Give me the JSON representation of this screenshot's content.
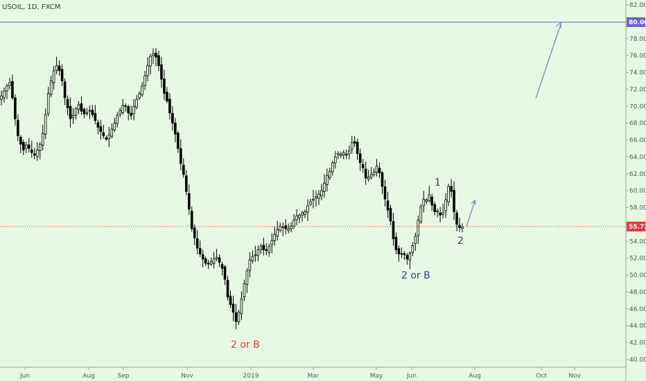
{
  "chart_data": {
    "type": "line",
    "title": "USOIL, 1D, FXCM",
    "x_axis_labels": [
      "Jun",
      "Aug",
      "Sep",
      "Nov",
      "2019",
      "Mar",
      "May",
      "Jun",
      "Aug",
      "Oct",
      "Nov"
    ],
    "y_axis_ticks": [
      "82.00",
      "80.00",
      "78.00",
      "76.00",
      "74.00",
      "72.00",
      "70.00",
      "68.00",
      "66.00",
      "64.00",
      "62.00",
      "60.00",
      "58.00",
      "56.00",
      "54.00",
      "52.00",
      "50.00",
      "48.00",
      "46.00",
      "44.00",
      "42.00",
      "40.00"
    ],
    "ylim": [
      39.5,
      82.6
    ],
    "grid": false,
    "series": [
      {
        "values": [
          71.2,
          71.8,
          72.4,
          72.8,
          71.0,
          68.5,
          66.5,
          65.5,
          64.8,
          65.4,
          65.0,
          64.5,
          64.2,
          64.8,
          65.5,
          66.8,
          69.0,
          71.5,
          73.0,
          74.2,
          74.8,
          74.2,
          73.0,
          71.0,
          69.8,
          68.5,
          68.9,
          69.7,
          70.2,
          69.4,
          69.1,
          69.2,
          69.5,
          69.0,
          68.3,
          67.5,
          67.0,
          66.5,
          66.1,
          66.6,
          67.3,
          68.0,
          68.9,
          69.5,
          70.1,
          70.0,
          69.2,
          68.9,
          70.0,
          70.8,
          71.5,
          72.4,
          73.6,
          74.8,
          75.9,
          76.2,
          75.8,
          74.8,
          73.2,
          71.5,
          70.6,
          69.2,
          68.0,
          66.7,
          65.0,
          63.2,
          61.9,
          59.9,
          57.8,
          55.5,
          54.4,
          53.2,
          52.5,
          51.9,
          51.4,
          51.3,
          51.6,
          51.9,
          52.1,
          51.5,
          50.8,
          49.5,
          47.4,
          46.5,
          45.6,
          44.5,
          45.6,
          47.2,
          49.0,
          50.5,
          51.8,
          52.2,
          52.4,
          53.0,
          53.4,
          53.0,
          52.9,
          53.4,
          54.1,
          54.8,
          55.4,
          55.8,
          55.7,
          55.5,
          55.5,
          55.8,
          56.5,
          57.0,
          57.1,
          57.4,
          57.5,
          58.2,
          58.7,
          59.0,
          59.3,
          59.6,
          60.0,
          60.9,
          61.8,
          62.3,
          63.3,
          64.0,
          64.4,
          64.3,
          64.5,
          64.2,
          64.7,
          65.7,
          65.6,
          64.4,
          63.3,
          62.7,
          61.5,
          61.6,
          61.9,
          62.2,
          62.9,
          62.1,
          60.5,
          59.0,
          57.7,
          56.4,
          54.3,
          53.0,
          52.5,
          52.5,
          52.4,
          51.9,
          52.6,
          53.5,
          54.6,
          56.5,
          58.1,
          59.0,
          58.9,
          59.5,
          58.3,
          57.5,
          57.6,
          57.1,
          57.4,
          58.9,
          60.5,
          59.9,
          57.5,
          56.0,
          55.6,
          55.7
        ]
      }
    ],
    "reference_lines": [
      {
        "value": 80.0,
        "label": "80.00",
        "color": "#7060c8",
        "style": "solid"
      },
      {
        "value": 55.72,
        "label": "55.72",
        "color": "#e53935",
        "style": "dotted"
      }
    ],
    "annotations": [
      {
        "text": "2 or B",
        "color": "#e53935"
      },
      {
        "text": "2 or B",
        "color": "#3a3a8c"
      },
      {
        "text": "1",
        "color": "#3a3a8c"
      },
      {
        "text": "2",
        "color": "#3a3a8c"
      }
    ],
    "colors": {
      "background": "#e6f8e3",
      "candles": "#000000",
      "axis_text": "#555555",
      "arrow": "#7080c0"
    }
  }
}
